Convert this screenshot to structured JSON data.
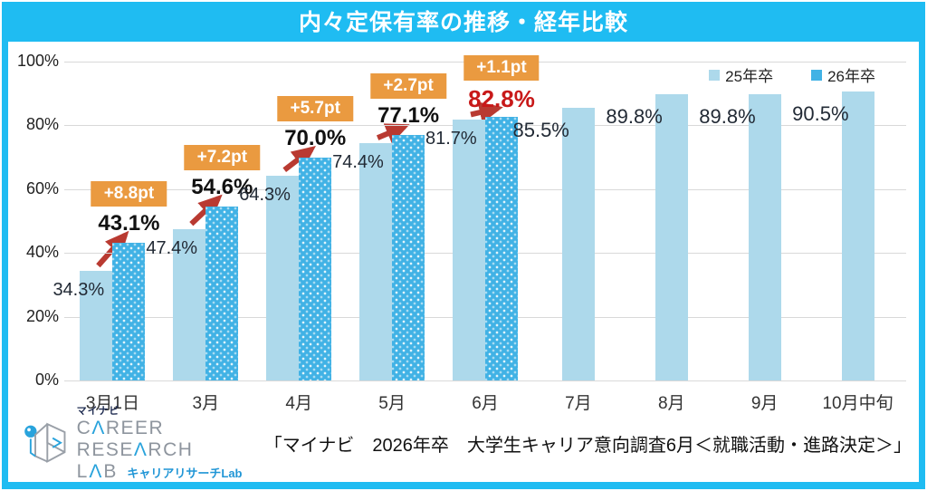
{
  "header": {
    "title": "内々定保有率の推移・経年比較"
  },
  "colors": {
    "frame_cyan": "#1fbcf2",
    "bar_light": "#add9eb",
    "bar_dark": "#41b2e5",
    "badge_orange": "#ea9a40",
    "arrow_red": "#b93a31",
    "highlight_red": "#c81919",
    "grid_gray": "#d9d9d9"
  },
  "chart_data": {
    "type": "bar",
    "title": "内々定保有率の推移・経年比較",
    "categories": [
      "3月1日",
      "3月",
      "4月",
      "5月",
      "6月",
      "7月",
      "8月",
      "9月",
      "10月中旬"
    ],
    "series": [
      {
        "name": "25年卒",
        "values": [
          34.3,
          47.4,
          64.3,
          74.4,
          81.7,
          85.5,
          89.8,
          89.8,
          90.5
        ]
      },
      {
        "name": "26年卒",
        "values": [
          43.1,
          54.6,
          70.0,
          77.1,
          82.8,
          null,
          null,
          null,
          null
        ]
      }
    ],
    "diff_badges": [
      "+8.8pt",
      "+7.2pt",
      "+5.7pt",
      "+2.7pt",
      "+1.1pt"
    ],
    "highlight": {
      "series": "26年卒",
      "category": "6月",
      "value_label": "82.8%"
    },
    "xlabel": "",
    "ylabel": "",
    "ylim": [
      0,
      100
    ],
    "yticks": [
      "0%",
      "20%",
      "40%",
      "60%",
      "80%",
      "100%"
    ],
    "grid": true,
    "legend_position": "top-right"
  },
  "legend": {
    "items": [
      {
        "label": "25年卒",
        "color": "#add9eb"
      },
      {
        "label": "26年卒",
        "color": "#41b2e5"
      }
    ]
  },
  "footer": {
    "logo": {
      "brand_small": "マイナビ",
      "brand_main": "CAREER RESEARCH",
      "brand_sub": "LAB",
      "brand_jp": "キャリアリサーチLab"
    },
    "source": "「マイナビ　2026年卒　大学生キャリア意向調査6月＜就職活動・進路決定＞」"
  }
}
